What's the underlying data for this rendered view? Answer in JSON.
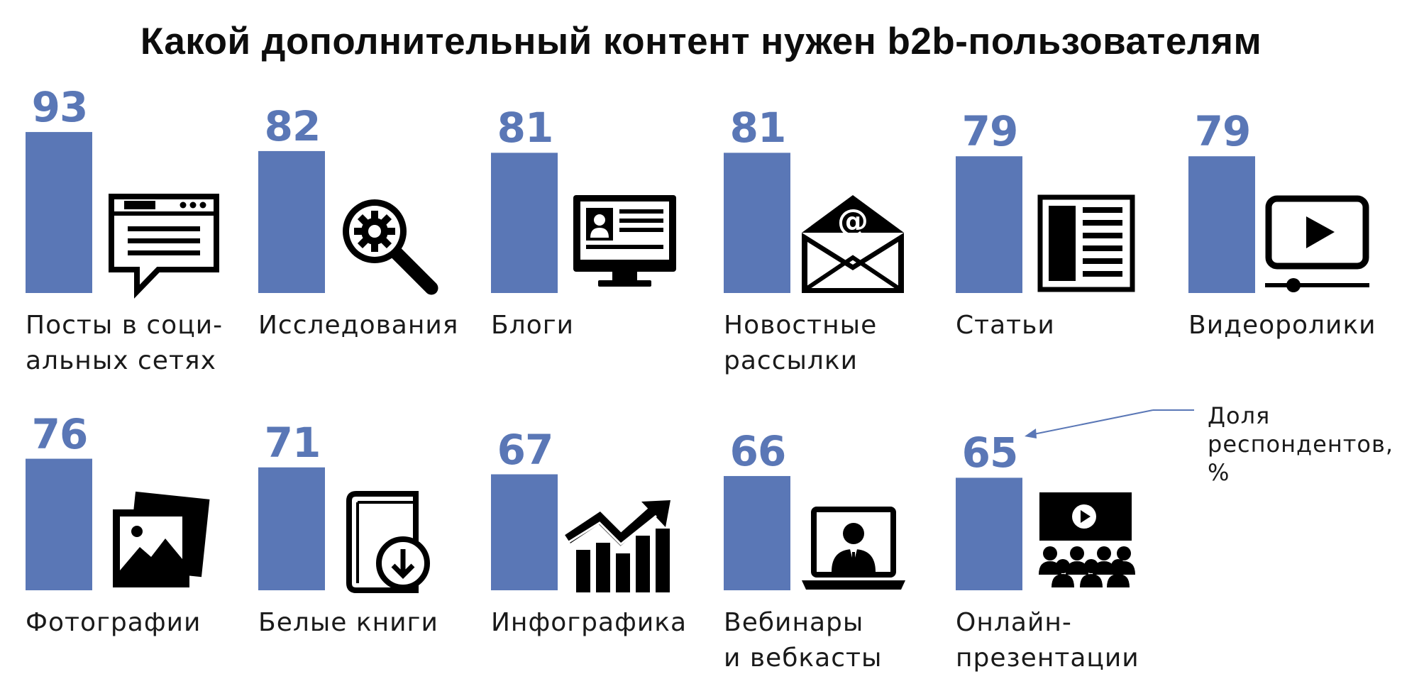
{
  "chart_data": {
    "type": "bar",
    "title": "Какой дополнительный контент нужен b2b-пользователям",
    "xlabel": "",
    "ylabel": "Доля респондентов, %",
    "ylim": [
      0,
      100
    ],
    "grid": false,
    "legend": "top-right",
    "legend_note": [
      "Доля",
      "респондентов,",
      "%"
    ],
    "bar_color": "#5a77b6",
    "categories": [
      {
        "label": [
          "Посты в соци-",
          "альных сетях"
        ],
        "value": 93,
        "icon": "social-post-icon"
      },
      {
        "label": [
          "Исследования"
        ],
        "value": 82,
        "icon": "research-magnifier-icon"
      },
      {
        "label": [
          "Блоги"
        ],
        "value": 81,
        "icon": "blog-monitor-icon"
      },
      {
        "label": [
          "Новостные",
          "рассылки"
        ],
        "value": 81,
        "icon": "email-envelope-icon"
      },
      {
        "label": [
          "Статьи"
        ],
        "value": 79,
        "icon": "article-page-icon"
      },
      {
        "label": [
          "Видеоролики"
        ],
        "value": 79,
        "icon": "video-player-icon"
      },
      {
        "label": [
          "Фотографии"
        ],
        "value": 76,
        "icon": "photos-icon"
      },
      {
        "label": [
          "Белые книги"
        ],
        "value": 71,
        "icon": "whitepaper-download-icon"
      },
      {
        "label": [
          "Инфографика"
        ],
        "value": 67,
        "icon": "infographic-growth-icon"
      },
      {
        "label": [
          "Вебинары",
          "и вебкасты"
        ],
        "value": 66,
        "icon": "webinar-laptop-icon"
      },
      {
        "label": [
          "Онлайн-",
          "презентации"
        ],
        "value": 65,
        "icon": "online-presentation-icon"
      }
    ]
  }
}
